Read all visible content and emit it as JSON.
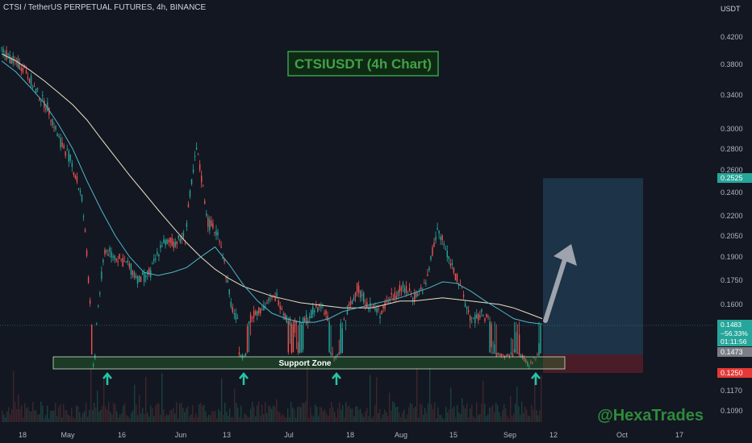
{
  "header": {
    "title": "CTSI / TetherUS PERPETUAL FUTURES, 4h, BINANCE",
    "currency": "USDT"
  },
  "colors": {
    "background": "#131722",
    "up": "#26a69a",
    "down": "#ef5350",
    "ma_slow": "#e8e2c4",
    "ma_fast": "#4fb8c9",
    "support": "#2e7d32",
    "target_zone": "#1d3347",
    "stop_zone": "#4a1c28",
    "arrow": "#26c6a4",
    "watermark": "#2e8b3a"
  },
  "chart_data": {
    "type": "line",
    "title": "CTSIUSDT (4h Chart)",
    "annotations": {
      "support_label": "Support Zone",
      "watermark": "@HexaTrades"
    },
    "x_ticks": [
      "18",
      "May",
      "16",
      "Jun",
      "13",
      "Jul",
      "18",
      "Aug",
      "15",
      "Sep",
      "12",
      "Oct",
      "17"
    ],
    "y_ticks": [
      "0.4200",
      "0.3800",
      "0.3400",
      "0.3000",
      "0.2800",
      "0.2600",
      "0.2400",
      "0.2200",
      "0.2050",
      "0.1900",
      "0.1750",
      "0.1600",
      "0.1473",
      "0.1170",
      "0.1090"
    ],
    "price_tags": {
      "target": "0.2525",
      "current": "0.1483",
      "change": "−56.33%",
      "countdown": "01:11:56",
      "entry": "0.1473",
      "stop": "0.1250"
    },
    "support_zone": [
      0.131,
      0.138
    ],
    "trade_setup": {
      "entry": 0.1473,
      "target": 0.2525,
      "stop": 0.125
    },
    "series": [
      {
        "values": [
          0.395,
          0.385,
          0.372,
          0.358,
          0.343,
          0.328,
          0.31,
          0.29,
          0.272,
          0.255,
          0.24,
          0.225,
          0.212,
          0.2,
          0.19,
          0.182,
          0.176,
          0.171,
          0.168,
          0.165,
          0.163,
          0.161,
          0.16,
          0.159,
          0.158,
          0.158,
          0.158,
          0.16,
          0.162,
          0.162,
          0.163,
          0.164,
          0.163,
          0.162,
          0.161,
          0.16,
          0.158,
          0.155,
          0.152
        ]
      },
      {
        "values": [
          0.385,
          0.37,
          0.35,
          0.33,
          0.305,
          0.28,
          0.25,
          0.225,
          0.205,
          0.19,
          0.18,
          0.178,
          0.18,
          0.183,
          0.19,
          0.197,
          0.185,
          0.172,
          0.162,
          0.155,
          0.152,
          0.15,
          0.15,
          0.152,
          0.156,
          0.158,
          0.16,
          0.162,
          0.164,
          0.167,
          0.17,
          0.174,
          0.173,
          0.168,
          0.162,
          0.157,
          0.152,
          0.15,
          0.149
        ]
      }
    ],
    "price_path": [
      0.4,
      0.385,
      0.375,
      0.345,
      0.325,
      0.29,
      0.27,
      0.235,
      0.132,
      0.195,
      0.19,
      0.185,
      0.175,
      0.18,
      0.2,
      0.2,
      0.205,
      0.28,
      0.215,
      0.205,
      0.16,
      0.142,
      0.155,
      0.16,
      0.165,
      0.15,
      0.148,
      0.155,
      0.16,
      0.14,
      0.152,
      0.17,
      0.16,
      0.155,
      0.165,
      0.17,
      0.165,
      0.172,
      0.21,
      0.19,
      0.17,
      0.15,
      0.155,
      0.145,
      0.142,
      0.148,
      0.132,
      0.1483
    ]
  }
}
